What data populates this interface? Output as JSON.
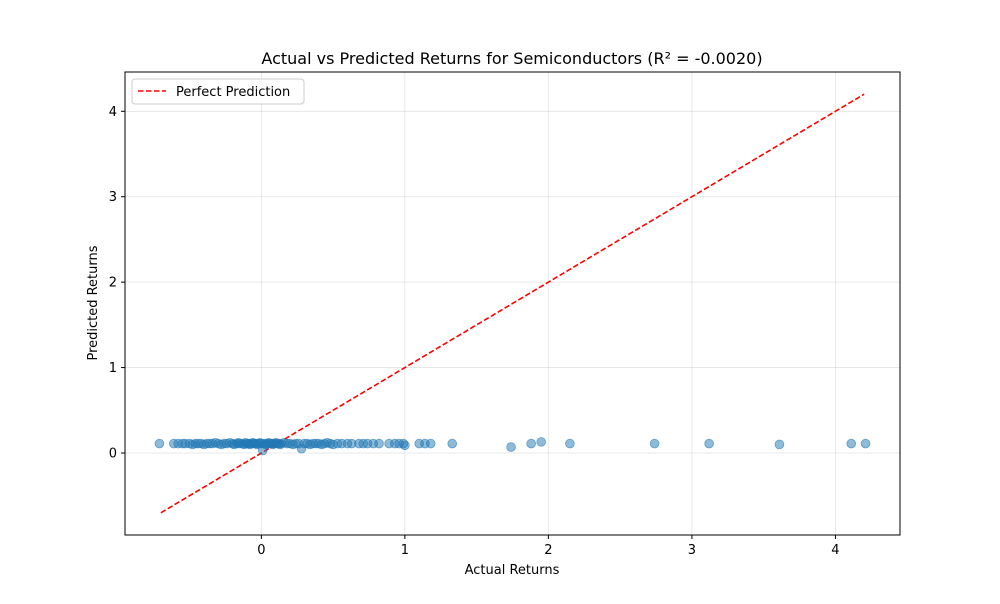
{
  "chart_data": {
    "type": "scatter",
    "title": "Actual vs Predicted Returns for Semiconductors (R² = -0.0020)",
    "xlabel": "Actual Returns",
    "ylabel": "Predicted Returns",
    "xlim": [
      -0.95,
      4.45
    ],
    "ylim": [
      -0.96,
      4.46
    ],
    "xticks": [
      0,
      1,
      2,
      3,
      4
    ],
    "yticks": [
      0,
      1,
      2,
      3,
      4
    ],
    "grid": true,
    "legend_position": "top-left",
    "reference_line": {
      "name": "Perfect Prediction",
      "color": "#ff0000",
      "style": "dashed",
      "x": [
        -0.7,
        4.2
      ],
      "y": [
        -0.7,
        4.2
      ]
    },
    "points_color": "#1f77b4",
    "points": [
      [
        -0.71,
        0.11
      ],
      [
        -0.61,
        0.11
      ],
      [
        -0.58,
        0.11
      ],
      [
        -0.55,
        0.11
      ],
      [
        -0.53,
        0.11
      ],
      [
        -0.5,
        0.11
      ],
      [
        -0.48,
        0.1
      ],
      [
        -0.46,
        0.11
      ],
      [
        -0.44,
        0.11
      ],
      [
        -0.42,
        0.11
      ],
      [
        -0.4,
        0.1
      ],
      [
        -0.38,
        0.11
      ],
      [
        -0.36,
        0.11
      ],
      [
        -0.34,
        0.11
      ],
      [
        -0.32,
        0.12
      ],
      [
        -0.3,
        0.11
      ],
      [
        -0.28,
        0.1
      ],
      [
        -0.26,
        0.11
      ],
      [
        -0.24,
        0.11
      ],
      [
        -0.22,
        0.12
      ],
      [
        -0.2,
        0.11
      ],
      [
        -0.19,
        0.1
      ],
      [
        -0.17,
        0.11
      ],
      [
        -0.16,
        0.12
      ],
      [
        -0.15,
        0.11
      ],
      [
        -0.13,
        0.11
      ],
      [
        -0.12,
        0.1
      ],
      [
        -0.11,
        0.12
      ],
      [
        -0.1,
        0.11
      ],
      [
        -0.09,
        0.11
      ],
      [
        -0.08,
        0.1
      ],
      [
        -0.07,
        0.11
      ],
      [
        -0.06,
        0.12
      ],
      [
        -0.05,
        0.11
      ],
      [
        -0.04,
        0.11
      ],
      [
        -0.03,
        0.1
      ],
      [
        -0.02,
        0.11
      ],
      [
        -0.01,
        0.12
      ],
      [
        0.0,
        0.11
      ],
      [
        0.01,
        0.03
      ],
      [
        0.02,
        0.11
      ],
      [
        0.03,
        0.1
      ],
      [
        0.04,
        0.11
      ],
      [
        0.05,
        0.12
      ],
      [
        0.06,
        0.11
      ],
      [
        0.07,
        0.11
      ],
      [
        0.08,
        0.1
      ],
      [
        0.09,
        0.11
      ],
      [
        0.1,
        0.12
      ],
      [
        0.11,
        0.11
      ],
      [
        0.12,
        0.11
      ],
      [
        0.13,
        0.1
      ],
      [
        0.14,
        0.11
      ],
      [
        0.16,
        0.12
      ],
      [
        0.18,
        0.11
      ],
      [
        0.2,
        0.11
      ],
      [
        0.22,
        0.1
      ],
      [
        0.24,
        0.11
      ],
      [
        0.26,
        0.11
      ],
      [
        0.28,
        0.05
      ],
      [
        0.3,
        0.11
      ],
      [
        0.32,
        0.11
      ],
      [
        0.34,
        0.1
      ],
      [
        0.36,
        0.11
      ],
      [
        0.38,
        0.11
      ],
      [
        0.4,
        0.11
      ],
      [
        0.42,
        0.1
      ],
      [
        0.44,
        0.11
      ],
      [
        0.46,
        0.12
      ],
      [
        0.48,
        0.11
      ],
      [
        0.5,
        0.1
      ],
      [
        0.53,
        0.11
      ],
      [
        0.56,
        0.11
      ],
      [
        0.6,
        0.11
      ],
      [
        0.63,
        0.11
      ],
      [
        0.68,
        0.11
      ],
      [
        0.71,
        0.11
      ],
      [
        0.74,
        0.11
      ],
      [
        0.78,
        0.11
      ],
      [
        0.82,
        0.11
      ],
      [
        0.89,
        0.11
      ],
      [
        0.93,
        0.11
      ],
      [
        0.96,
        0.11
      ],
      [
        0.99,
        0.11
      ],
      [
        1.0,
        0.09
      ],
      [
        1.1,
        0.11
      ],
      [
        1.14,
        0.11
      ],
      [
        1.18,
        0.11
      ],
      [
        1.33,
        0.11
      ],
      [
        1.74,
        0.07
      ],
      [
        1.88,
        0.11
      ],
      [
        1.95,
        0.13
      ],
      [
        2.15,
        0.11
      ],
      [
        2.74,
        0.11
      ],
      [
        3.12,
        0.11
      ],
      [
        3.61,
        0.1
      ],
      [
        4.11,
        0.11
      ],
      [
        4.21,
        0.11
      ]
    ]
  }
}
